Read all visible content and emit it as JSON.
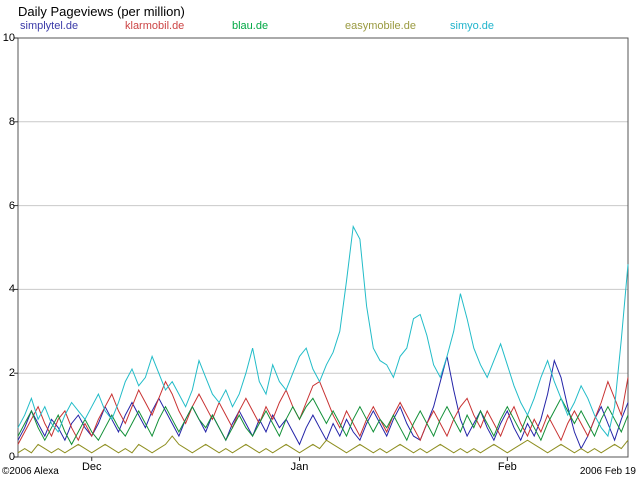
{
  "title": "Daily Pageviews (per million)",
  "legend": [
    {
      "label": "simplytel.de",
      "color": "#3a3aa8"
    },
    {
      "label": "klarmobil.de",
      "color": "#cc4444"
    },
    {
      "label": "blau.de",
      "color": "#00a844"
    },
    {
      "label": "easymobile.de",
      "color": "#9a9a40"
    },
    {
      "label": "simyo.de",
      "color": "#20b4cc"
    }
  ],
  "footer": {
    "copyright": "©2006 Alexa",
    "date": "2006 Feb 19"
  },
  "chart_data": {
    "type": "line",
    "title": "Daily Pageviews (per million)",
    "ylabel": "Daily Pageviews (per million)",
    "xlabel": "",
    "ylim": [
      0,
      10
    ],
    "yticks": [
      0,
      2,
      4,
      6,
      8,
      10
    ],
    "grid": "horizontal",
    "legend_position": "top",
    "xticks": [
      {
        "label": "Dec",
        "index": 11
      },
      {
        "label": "Jan",
        "index": 42
      },
      {
        "label": "Feb",
        "index": 73
      }
    ],
    "x_unit": "day",
    "series": [
      {
        "name": "simplytel.de",
        "color": "#2424a8",
        "values": [
          0.4,
          0.7,
          1.1,
          0.8,
          0.5,
          0.9,
          0.7,
          0.4,
          0.8,
          1.0,
          0.7,
          0.5,
          0.8,
          1.2,
          0.9,
          0.6,
          1.0,
          1.3,
          1.0,
          0.7,
          1.1,
          1.4,
          1.1,
          0.8,
          0.5,
          0.9,
          1.2,
          0.9,
          0.6,
          1.0,
          0.7,
          0.4,
          0.8,
          1.1,
          0.8,
          0.5,
          0.9,
          0.6,
          1.0,
          0.7,
          0.9,
          0.6,
          0.3,
          0.7,
          1.0,
          0.7,
          0.4,
          0.8,
          0.5,
          0.9,
          0.6,
          0.4,
          0.8,
          1.1,
          0.8,
          0.5,
          0.9,
          1.2,
          0.8,
          0.5,
          0.4,
          0.8,
          1.2,
          1.8,
          2.4,
          1.6,
          0.9,
          0.5,
          0.8,
          1.1,
          0.7,
          0.4,
          0.8,
          1.1,
          0.7,
          0.4,
          0.8,
          0.5,
          0.9,
          1.5,
          2.3,
          1.9,
          1.2,
          0.6,
          0.2,
          0.5,
          0.9,
          1.2,
          0.8,
          0.4,
          0.9,
          1.3
        ]
      },
      {
        "name": "klarmobil.de",
        "color": "#c83232",
        "values": [
          0.3,
          0.6,
          0.9,
          1.2,
          0.8,
          0.5,
          0.9,
          1.1,
          0.7,
          0.4,
          0.8,
          0.5,
          0.9,
          1.2,
          1.5,
          1.1,
          0.8,
          1.2,
          1.6,
          1.3,
          1.0,
          1.4,
          1.8,
          1.5,
          1.1,
          0.8,
          1.2,
          1.5,
          1.2,
          0.9,
          1.3,
          1.0,
          0.7,
          1.1,
          1.4,
          1.1,
          0.8,
          1.2,
          0.9,
          1.3,
          1.6,
          1.2,
          0.9,
          1.3,
          1.7,
          1.8,
          1.4,
          1.0,
          0.7,
          1.1,
          0.8,
          0.5,
          0.9,
          1.2,
          0.9,
          0.6,
          1.0,
          1.3,
          1.0,
          0.7,
          0.4,
          0.8,
          1.1,
          0.8,
          0.5,
          0.9,
          1.2,
          1.4,
          1.0,
          0.7,
          1.1,
          0.8,
          0.5,
          0.9,
          1.2,
          0.8,
          0.5,
          0.9,
          0.6,
          1.0,
          0.7,
          0.4,
          0.8,
          1.1,
          0.8,
          0.5,
          0.9,
          1.3,
          1.8,
          1.4,
          1.0,
          1.9
        ]
      },
      {
        "name": "blau.de",
        "color": "#129038",
        "values": [
          0.5,
          0.8,
          1.1,
          0.7,
          0.4,
          0.7,
          1.0,
          0.6,
          0.3,
          0.6,
          0.9,
          0.6,
          0.4,
          0.7,
          1.0,
          0.7,
          0.5,
          0.8,
          1.1,
          0.8,
          0.5,
          0.9,
          1.2,
          0.9,
          0.6,
          0.9,
          1.2,
          0.9,
          0.7,
          1.0,
          0.7,
          0.4,
          0.7,
          1.0,
          0.7,
          0.5,
          0.8,
          1.1,
          0.8,
          0.5,
          0.9,
          1.2,
          0.9,
          1.2,
          1.4,
          1.1,
          0.8,
          1.1,
          0.8,
          0.5,
          0.9,
          1.2,
          0.9,
          0.6,
          0.9,
          0.7,
          1.0,
          0.7,
          0.4,
          0.8,
          1.1,
          0.8,
          0.5,
          0.9,
          1.2,
          0.9,
          0.6,
          1.0,
          0.7,
          1.1,
          0.8,
          0.5,
          0.9,
          1.2,
          0.9,
          0.6,
          1.0,
          0.7,
          0.4,
          0.8,
          1.1,
          1.4,
          1.1,
          0.8,
          1.1,
          0.8,
          0.5,
          0.9,
          1.2,
          0.9,
          0.6,
          1.0
        ]
      },
      {
        "name": "easymobile.de",
        "color": "#8e8e20",
        "values": [
          0.1,
          0.2,
          0.1,
          0.3,
          0.2,
          0.1,
          0.2,
          0.1,
          0.2,
          0.3,
          0.2,
          0.1,
          0.2,
          0.3,
          0.2,
          0.1,
          0.2,
          0.1,
          0.3,
          0.2,
          0.1,
          0.2,
          0.3,
          0.5,
          0.3,
          0.2,
          0.1,
          0.2,
          0.3,
          0.2,
          0.1,
          0.2,
          0.1,
          0.2,
          0.3,
          0.2,
          0.1,
          0.2,
          0.1,
          0.2,
          0.3,
          0.2,
          0.1,
          0.2,
          0.3,
          0.2,
          0.4,
          0.3,
          0.2,
          0.1,
          0.2,
          0.3,
          0.2,
          0.1,
          0.2,
          0.1,
          0.2,
          0.3,
          0.2,
          0.1,
          0.2,
          0.1,
          0.2,
          0.3,
          0.2,
          0.1,
          0.2,
          0.1,
          0.2,
          0.1,
          0.2,
          0.3,
          0.2,
          0.1,
          0.2,
          0.3,
          0.4,
          0.3,
          0.2,
          0.1,
          0.2,
          0.3,
          0.2,
          0.1,
          0.2,
          0.1,
          0.2,
          0.1,
          0.2,
          0.3,
          0.2,
          0.4
        ]
      },
      {
        "name": "simyo.de",
        "color": "#22bcc8",
        "values": [
          0.7,
          1.0,
          1.4,
          0.9,
          1.2,
          0.8,
          0.6,
          1.0,
          1.3,
          1.1,
          0.9,
          1.2,
          1.5,
          1.1,
          0.9,
          1.3,
          1.8,
          2.1,
          1.7,
          1.9,
          2.4,
          2.0,
          1.6,
          1.8,
          1.5,
          1.2,
          1.6,
          2.3,
          1.9,
          1.5,
          1.3,
          1.6,
          1.2,
          1.5,
          2.0,
          2.6,
          1.8,
          1.5,
          2.2,
          1.8,
          1.6,
          2.0,
          2.4,
          2.6,
          2.1,
          1.8,
          2.2,
          2.5,
          3.0,
          4.2,
          5.5,
          5.2,
          3.6,
          2.6,
          2.3,
          2.2,
          1.9,
          2.4,
          2.6,
          3.3,
          3.4,
          2.9,
          2.2,
          1.9,
          2.4,
          3.0,
          3.9,
          3.3,
          2.6,
          2.2,
          1.9,
          2.3,
          2.7,
          2.2,
          1.7,
          1.3,
          1.0,
          1.4,
          1.9,
          2.3,
          1.8,
          1.4,
          1.0,
          1.3,
          1.7,
          1.4,
          1.0,
          0.7,
          0.5,
          1.2,
          2.8,
          4.6
        ]
      }
    ]
  }
}
